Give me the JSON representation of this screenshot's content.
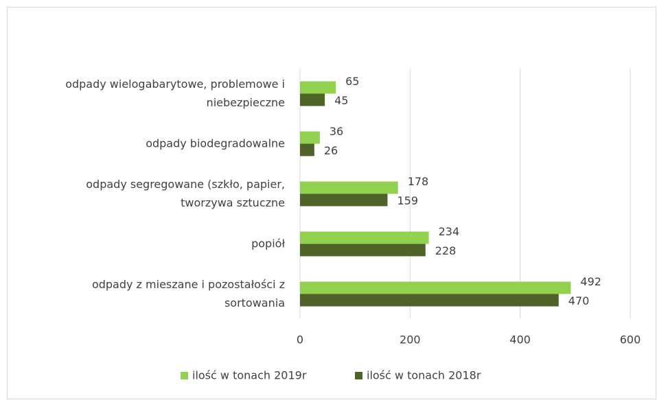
{
  "chart_data": {
    "type": "hbar",
    "categories": [
      "odpady wielogabarytowe, problemowe i niebezpieczne",
      "odpady biodegradowalne",
      "odpady segregowane (szkło, papier, tworzywa sztuczne",
      "popiół",
      "odpady z mieszane i pozostałości z sortowania"
    ],
    "series": [
      {
        "name": "ilość w tonach 2019r",
        "color": "#92d050",
        "values": [
          65,
          36,
          178,
          234,
          492
        ]
      },
      {
        "name": "ilość w tonach 2018r",
        "color": "#4f6228",
        "values": [
          45,
          26,
          159,
          228,
          470
        ]
      }
    ],
    "xlim": [
      0,
      600
    ],
    "xticks": [
      0,
      200,
      400,
      600
    ],
    "grid": true,
    "legend": "bottom"
  }
}
